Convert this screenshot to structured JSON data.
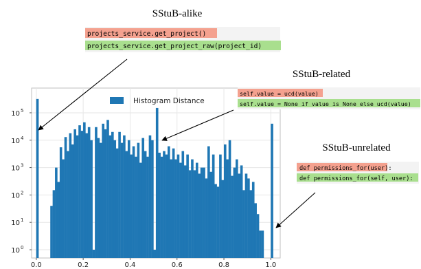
{
  "chart_data": {
    "type": "bar",
    "title": "",
    "xlabel": "",
    "ylabel": "",
    "log_y": true,
    "grid": true,
    "legend": {
      "label": "Histogram Distance",
      "placement": "top-center"
    },
    "xlim": [
      -0.02,
      1.04
    ],
    "ylim": [
      0.5,
      800000
    ],
    "bin_width": 0.01,
    "xticks": [
      0.0,
      0.2,
      0.4,
      0.6,
      0.8,
      1.0
    ],
    "xtick_labels": [
      "0.0",
      "0.2",
      "0.4",
      "0.6",
      "0.8",
      "1.0"
    ],
    "yticks": [
      1,
      10,
      100,
      1000,
      10000,
      100000
    ],
    "ytick_labels": [
      {
        "base": "10",
        "exp": "0"
      },
      {
        "base": "10",
        "exp": "1"
      },
      {
        "base": "10",
        "exp": "2"
      },
      {
        "base": "10",
        "exp": "3"
      },
      {
        "base": "10",
        "exp": "4"
      },
      {
        "base": "10",
        "exp": "5"
      }
    ],
    "series": [
      {
        "values": [
          320000,
          0,
          0,
          0,
          0,
          0,
          40,
          150,
          1000,
          300,
          5500,
          2000,
          13000,
          4000,
          18000,
          7000,
          25000,
          15000,
          35000,
          22000,
          45000,
          18000,
          30000,
          10000,
          1,
          30000,
          12000,
          8000,
          40000,
          25000,
          55000,
          15000,
          20000,
          10000,
          5000,
          20000,
          8000,
          15000,
          4000,
          10000,
          3000,
          6000,
          2500,
          8000,
          1500,
          12000,
          4000,
          2500,
          15000,
          10000,
          1,
          150000,
          3500,
          2500,
          4000,
          3000,
          6000,
          2000,
          5000,
          2000,
          3000,
          1500,
          4000,
          1200,
          3000,
          800,
          2000,
          800,
          1500,
          600,
          1000,
          1000,
          400,
          6000,
          700,
          3000,
          250,
          200,
          3000,
          350,
          7000,
          2000,
          10000,
          500,
          1000,
          2000,
          600,
          1200,
          150,
          600,
          400,
          150,
          300,
          50,
          20,
          5,
          5,
          0,
          0,
          0,
          40000
        ]
      }
    ]
  },
  "annotations": {
    "alike": {
      "title": "SStuB-alike",
      "before": "projects_service.get_project()",
      "after": "projects_service.get_project_raw(project_id)"
    },
    "related": {
      "title": "SStuB-related",
      "before": "self.value = ucd(value)",
      "after": "self.value = None if value is None else ucd(value)"
    },
    "unrelated": {
      "title": "SStuB-unrelated",
      "before": "def permissions_for(user):",
      "after": "def permissions_for(self, user):"
    }
  },
  "colors": {
    "bar": "#1f77b4",
    "removed_line_bg": "#f4a18f",
    "added_line_bg": "#a9df8e",
    "code_box_bg": "#f3f3f3",
    "grid": "#e6e6e6",
    "frame": "#bfbfbf"
  }
}
